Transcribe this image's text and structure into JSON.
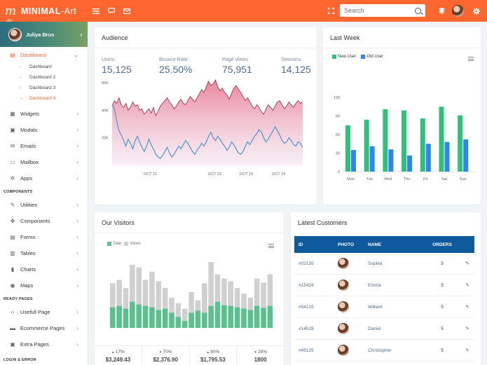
{
  "brand": {
    "name_bold": "MINIMAL",
    "name_rest": "-Art",
    "mark": "m",
    "mark_sub": "-Art"
  },
  "header": {
    "icons": [
      "menu-icon",
      "chat-icon",
      "mail-icon"
    ],
    "search_placeholder": "Search"
  },
  "sidebar": {
    "user": "Juliya Brus",
    "dashboard": {
      "label": "Dashboard",
      "subs": [
        "Dashboard",
        "Dashboard 2",
        "Dashboard 3",
        "Dashboard 4"
      ]
    },
    "items1": [
      {
        "label": "Widgets",
        "icon": "grid-icon"
      },
      {
        "label": "Modals",
        "icon": "box-icon"
      },
      {
        "label": "Emails",
        "icon": "mail-icon"
      },
      {
        "label": "Mailbox",
        "icon": "inbox-icon"
      },
      {
        "label": "Apps",
        "icon": "gear-icon"
      }
    ],
    "section_components": "COMPONENTS",
    "items2": [
      {
        "label": "Utilities",
        "icon": "pencil-icon"
      },
      {
        "label": "Components",
        "icon": "move-icon"
      },
      {
        "label": "Forms",
        "icon": "forms-icon"
      },
      {
        "label": "Tables",
        "icon": "table-icon"
      },
      {
        "label": "Charts",
        "icon": "chart-icon"
      },
      {
        "label": "Maps",
        "icon": "map-pin-icon"
      }
    ],
    "section_pages": "READY PAGES",
    "items3": [
      {
        "label": "Usefull Page",
        "icon": "code-icon"
      },
      {
        "label": "Ecommerce Pages",
        "icon": "cart-icon"
      },
      {
        "label": "Extra Pages",
        "icon": "page-icon"
      }
    ],
    "section_login": "LOGIN & ERROR"
  },
  "audience": {
    "title": "Audience",
    "stats": [
      {
        "label": "Users",
        "value": "15,125"
      },
      {
        "label": "Bounce Rate",
        "value": "25.50%"
      },
      {
        "label": "Page Views",
        "value": "75,951"
      },
      {
        "label": "Sessions",
        "value": "14,125"
      }
    ],
    "chart_data": {
      "type": "area",
      "yticks": [
        "60K",
        "40K",
        "20K"
      ],
      "xticks": [
        "OCT 21",
        "OCT 22",
        "OCT 23",
        "OCT 24"
      ],
      "colors": {
        "series1": "#e8728d",
        "series2": "#4f95c8"
      },
      "series": [
        {
          "values": [
            43,
            47,
            45,
            49,
            44,
            42,
            45,
            40,
            42,
            46,
            43,
            44,
            40,
            41,
            37,
            39,
            41,
            38,
            42,
            36,
            39,
            43,
            45,
            47,
            49,
            46,
            44,
            41,
            43,
            46,
            48,
            45,
            44,
            47,
            50,
            48,
            46,
            49,
            52,
            55,
            53,
            57,
            61,
            58,
            59,
            62,
            57,
            54,
            56,
            53,
            51,
            48,
            52,
            56,
            58,
            55,
            53,
            50,
            47,
            49,
            46,
            43,
            41,
            44,
            42,
            39,
            37,
            41,
            44,
            42,
            40,
            43,
            46,
            47,
            44,
            41,
            43,
            46,
            44,
            42,
            45,
            47,
            45,
            46
          ]
        },
        {
          "values": [
            44,
            41,
            32,
            25,
            22,
            18,
            14,
            19,
            16,
            12,
            18,
            21,
            17,
            13,
            10,
            14,
            19,
            15,
            12,
            8,
            6,
            5,
            7,
            10,
            13,
            9,
            6,
            8,
            11,
            14,
            12,
            15,
            18,
            16,
            13,
            10,
            8,
            11,
            13,
            16,
            14,
            17,
            21,
            24,
            20,
            18,
            21,
            19,
            16,
            14,
            11,
            13,
            17,
            15,
            12,
            9,
            8,
            10,
            14,
            17,
            15,
            18,
            21,
            23,
            26,
            24,
            20,
            17,
            19,
            22,
            25,
            28,
            25,
            22,
            18,
            16,
            17,
            20,
            18,
            15,
            14,
            17,
            16,
            13
          ]
        }
      ]
    }
  },
  "lastweek": {
    "title": "Last Week",
    "chart_data": {
      "type": "bar",
      "categories": [
        "Mon",
        "Tue",
        "Wed",
        "Thu",
        "Fri",
        "Sat",
        "Sun"
      ],
      "series": [
        {
          "name": "New User",
          "values": [
            75,
            84,
            101,
            99,
            86,
            105,
            91
          ],
          "color": "#2ec17c"
        },
        {
          "name": "Old User",
          "values": [
            35,
            41,
            36,
            26,
            45,
            48,
            52
          ],
          "color": "#2e86f0"
        }
      ],
      "yticks": [
        "120",
        "90",
        "60",
        "30",
        "0"
      ],
      "ylim": [
        0,
        120
      ]
    }
  },
  "visitors": {
    "title": "Our Visitors",
    "chart_data": {
      "type": "bar",
      "series": [
        {
          "name": "Sale",
          "values": [
            30,
            32,
            28,
            38,
            34,
            32,
            30,
            26,
            28,
            22,
            16,
            10,
            22,
            25,
            22,
            32,
            38,
            33,
            32,
            30,
            28,
            26,
            32,
            29,
            32
          ],
          "color": "#5ac18e"
        },
        {
          "name": "Views",
          "values": [
            65,
            70,
            58,
            92,
            88,
            70,
            82,
            68,
            58,
            44,
            36,
            28,
            52,
            40,
            65,
            96,
            78,
            72,
            68,
            58,
            50,
            44,
            72,
            66,
            78
          ],
          "color": "#d0d0d0"
        }
      ]
    },
    "stats": [
      {
        "pct": "17%",
        "amount": "$3,249.43",
        "dir": "up"
      },
      {
        "pct": "70%",
        "amount": "$2,376.90",
        "dir": "down"
      },
      {
        "pct": "80%",
        "amount": "$1,795.53",
        "dir": "up"
      },
      {
        "pct": "28%",
        "amount": "1800",
        "dir": "down"
      }
    ]
  },
  "customers": {
    "title": "Latest Customers",
    "headers": [
      "ID",
      "PHOTO",
      "NAME",
      "ORDERS"
    ],
    "rows": [
      {
        "id": "#02135",
        "name": "Sophia",
        "orders": "5"
      },
      {
        "id": "#15428",
        "name": "Emma",
        "orders": "5"
      },
      {
        "id": "#54215",
        "name": "William",
        "orders": "5"
      },
      {
        "id": "#14528",
        "name": "Daniel",
        "orders": "5"
      },
      {
        "id": "#45125",
        "name": "Christopher",
        "orders": "5"
      }
    ]
  }
}
